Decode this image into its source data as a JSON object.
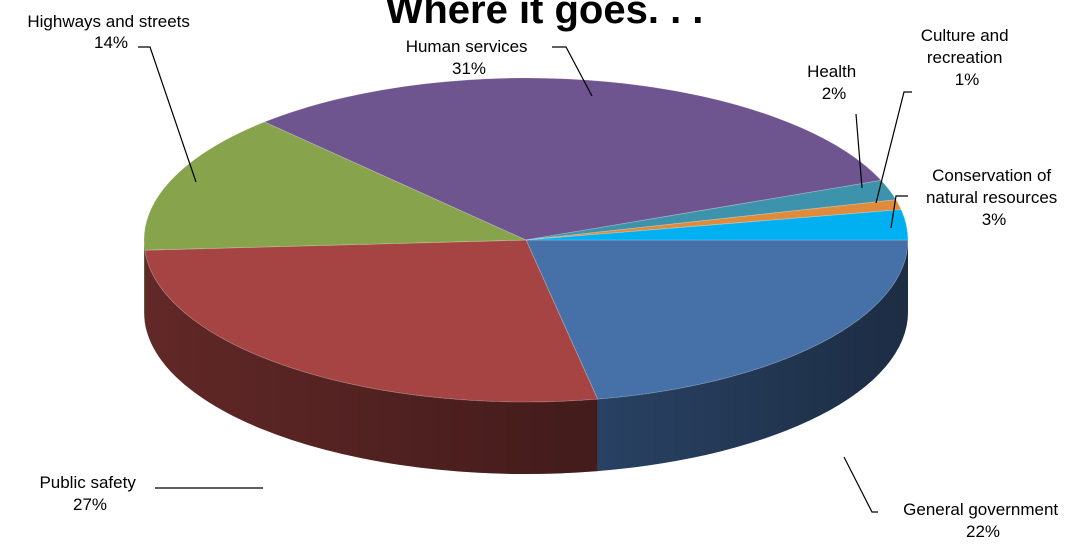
{
  "chart_data": {
    "type": "pie",
    "title": "Where it goes. . .",
    "slices": [
      {
        "label": "General government",
        "value": 22,
        "display": "22%",
        "color": "#4670A8"
      },
      {
        "label": "Public safety",
        "value": 27,
        "display": "27%",
        "color": "#A54442"
      },
      {
        "label": "Highways and streets",
        "value": 14,
        "display": "14%",
        "color": "#87A34B"
      },
      {
        "label": "Human services",
        "value": 31,
        "display": "31%",
        "color": "#6F5590"
      },
      {
        "label": "Health",
        "value": 2,
        "display": "2%",
        "color": "#3D93AC"
      },
      {
        "label": "Culture and recreation",
        "value": 1,
        "display": "1%",
        "color": "#E08A3C"
      },
      {
        "label": "Conservation of natural resources",
        "value": 3,
        "display": "3%",
        "color": "#00B0F0"
      }
    ],
    "labels": {
      "general": {
        "line1": "General government",
        "pct": "22%"
      },
      "public": {
        "line1": "Public safety",
        "pct": "27%"
      },
      "highways": {
        "line1": "Highways and streets",
        "pct": "14%"
      },
      "human": {
        "line1": "Human services",
        "pct": "31%"
      },
      "health": {
        "line1": "Health",
        "pct": "2%"
      },
      "culture": {
        "line1": "Culture and",
        "line2": "recreation",
        "pct": "1%"
      },
      "conservation": {
        "line1": "Conservation of",
        "line2": "natural resources",
        "pct": "3%"
      }
    }
  }
}
